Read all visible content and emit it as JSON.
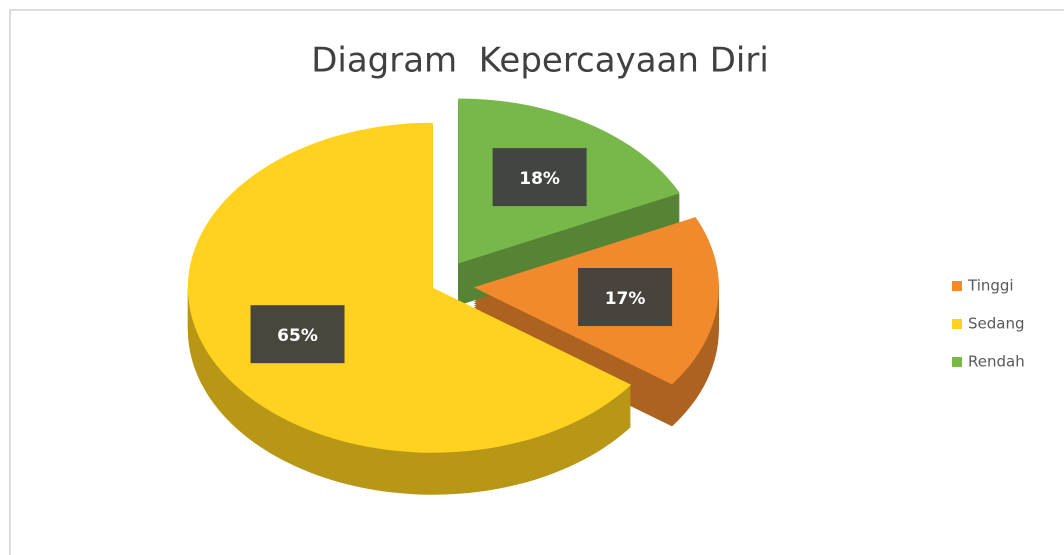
{
  "chart_data": {
    "type": "pie",
    "title": "Diagram  Kepercayaan Diri",
    "categories": [
      "Tinggi",
      "Sedang",
      "Rendah"
    ],
    "values": [
      17,
      65,
      18
    ],
    "value_labels": [
      "17%",
      "65%",
      "18%"
    ],
    "colors": [
      "#f08a2c",
      "#ffd21f",
      "#78b84a"
    ],
    "legend": "right"
  }
}
